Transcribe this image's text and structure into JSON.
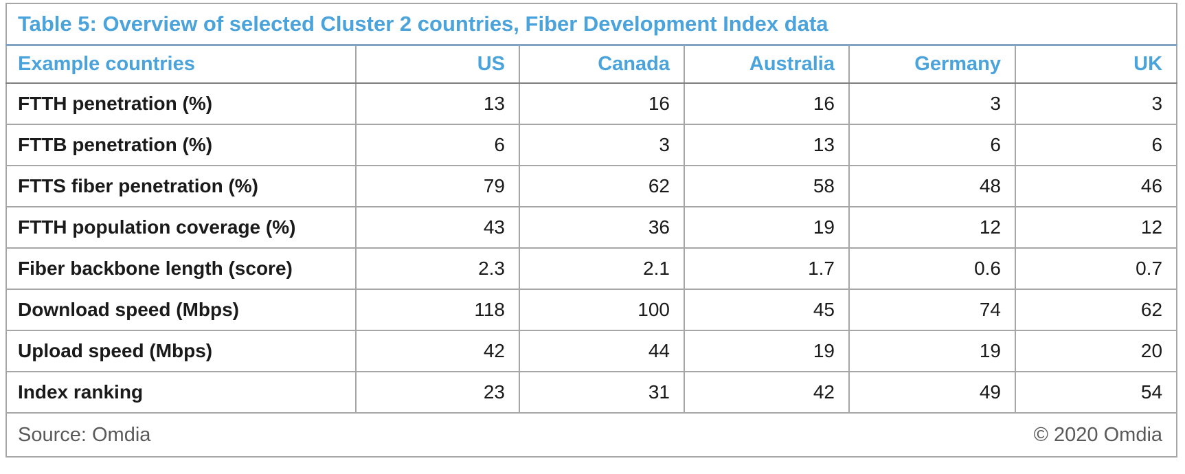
{
  "title": "Table 5: Overview of selected Cluster 2 countries, Fiber Development Index data",
  "table": {
    "header": {
      "label": "Example countries",
      "columns": [
        "US",
        "Canada",
        "Australia",
        "Germany",
        "UK"
      ]
    },
    "rows": [
      {
        "label": "FTTH penetration (%)",
        "values": [
          "13",
          "16",
          "16",
          "3",
          "3"
        ]
      },
      {
        "label": "FTTB penetration (%)",
        "values": [
          "6",
          "3",
          "13",
          "6",
          "6"
        ]
      },
      {
        "label": "FTTS fiber penetration (%)",
        "values": [
          "79",
          "62",
          "58",
          "48",
          "46"
        ]
      },
      {
        "label": "FTTH population coverage (%)",
        "values": [
          "43",
          "36",
          "19",
          "12",
          "12"
        ]
      },
      {
        "label": "Fiber backbone length (score)",
        "values": [
          "2.3",
          "2.1",
          "1.7",
          "0.6",
          "0.7"
        ]
      },
      {
        "label": "Download speed (Mbps)",
        "values": [
          "118",
          "100",
          "45",
          "74",
          "62"
        ]
      },
      {
        "label": "Upload speed (Mbps)",
        "values": [
          "42",
          "44",
          "19",
          "19",
          "20"
        ]
      },
      {
        "label": "Index ranking",
        "values": [
          "23",
          "31",
          "42",
          "49",
          "54"
        ]
      }
    ]
  },
  "footer": {
    "source": "Source: Omdia",
    "copyright": "© 2020 Omdia"
  },
  "colors": {
    "accent": "#4AA3DB",
    "grid": "#A6A6A6",
    "outer": "#8C8C8C",
    "header-rule": "#7E7E7E",
    "title-rule": "#7FA3C0",
    "text": "#1A1A1A",
    "muted": "#595959",
    "background": "#FFFFFF"
  },
  "chart_data": {
    "type": "table",
    "title": "Table 5: Overview of selected Cluster 2 countries, Fiber Development Index data",
    "columns": [
      "Example countries",
      "US",
      "Canada",
      "Australia",
      "Germany",
      "UK"
    ],
    "rows": [
      [
        "FTTH penetration (%)",
        13,
        16,
        16,
        3,
        3
      ],
      [
        "FTTB penetration (%)",
        6,
        3,
        13,
        6,
        6
      ],
      [
        "FTTS fiber penetration (%)",
        79,
        62,
        58,
        48,
        46
      ],
      [
        "FTTH population coverage (%)",
        43,
        36,
        19,
        12,
        12
      ],
      [
        "Fiber backbone length (score)",
        2.3,
        2.1,
        1.7,
        0.6,
        0.7
      ],
      [
        "Download speed (Mbps)",
        118,
        100,
        45,
        74,
        62
      ],
      [
        "Upload speed (Mbps)",
        42,
        44,
        19,
        19,
        20
      ],
      [
        "Index ranking",
        23,
        31,
        42,
        49,
        54
      ]
    ],
    "source": "Source: Omdia",
    "copyright": "© 2020 Omdia",
    "layout_hints": {
      "title_position": "top-left, accent blue, bold",
      "header_alignment": "label left, countries right",
      "value_alignment": "right",
      "grid": "full borders, gray"
    }
  }
}
